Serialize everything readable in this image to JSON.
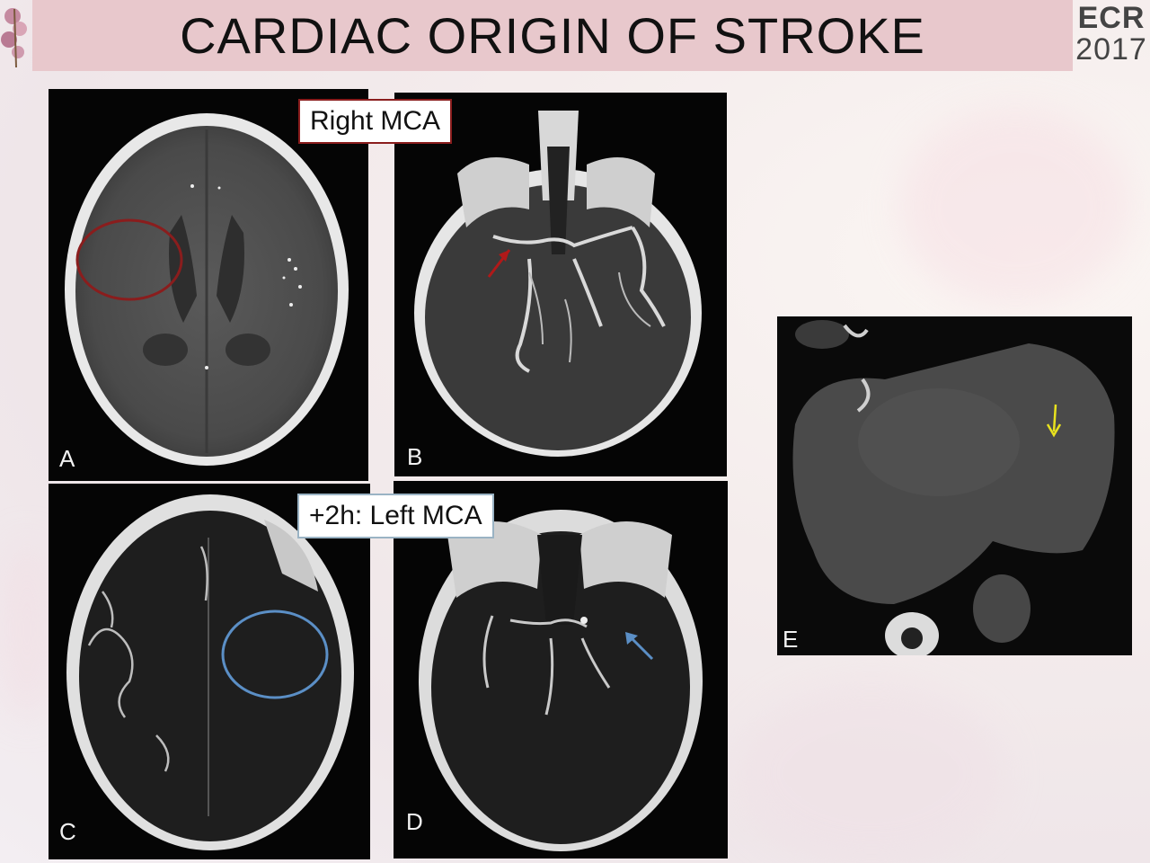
{
  "slide": {
    "title": "CARDIAC ORIGIN OF STROKE",
    "logo": {
      "line1": "ECR",
      "line2": "2017"
    }
  },
  "callouts": {
    "top": "Right  MCA",
    "bottom": "+2h: Left MCA"
  },
  "panels": [
    {
      "id": "A",
      "label": "A"
    },
    {
      "id": "B",
      "label": "B"
    },
    {
      "id": "C",
      "label": "C"
    },
    {
      "id": "D",
      "label": "D"
    },
    {
      "id": "E",
      "label": "E"
    }
  ],
  "colors": {
    "red_marker": "#8a1d1d",
    "red_arrow": "#b01919",
    "blue_marker": "#5b8fc6",
    "yellow_arrow": "#e8e21e",
    "header": "#e8c8cc"
  }
}
